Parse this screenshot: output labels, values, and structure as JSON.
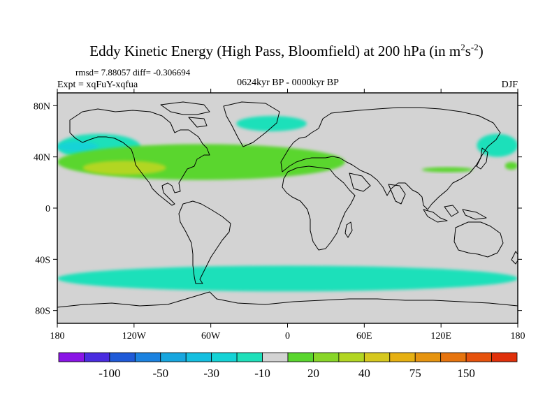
{
  "chart_data": {
    "type": "heatmap",
    "projection": "cylindrical-equidistant",
    "title": "Eddy Kinetic Energy (High Pass, Bloomfield) at 200 hPa (in m",
    "title_units_tail": {
      "s": "s",
      "exp_m": "2",
      "exp_s": "-2",
      "close": ")"
    },
    "stats": "rmsd= 7.88057 diff= -0.306694",
    "experiment": "Expt = xqFuY-xqfua",
    "period": "0624kyr BP - 0000kyr BP",
    "season": "DJF",
    "lon_range": [
      -180,
      180
    ],
    "lat_range": [
      -90,
      90
    ],
    "x_ticks": [
      {
        "value": -180,
        "label": "180"
      },
      {
        "value": -120,
        "label": "120W"
      },
      {
        "value": -60,
        "label": "60W"
      },
      {
        "value": 0,
        "label": "0"
      },
      {
        "value": 60,
        "label": "60E"
      },
      {
        "value": 120,
        "label": "120E"
      },
      {
        "value": 180,
        "label": "180"
      }
    ],
    "y_ticks": [
      {
        "value": 80,
        "label": "80N"
      },
      {
        "value": 40,
        "label": "40N"
      },
      {
        "value": 0,
        "label": "0"
      },
      {
        "value": -40,
        "label": "40S"
      },
      {
        "value": -80,
        "label": "80S"
      }
    ],
    "colorbar": {
      "colors": [
        "#8a14e6",
        "#4a2ce0",
        "#1f5ad8",
        "#1b82e0",
        "#17a6df",
        "#14bfe0",
        "#14d3d6",
        "#1ee0ba",
        "#d3d3d3",
        "#5ad62e",
        "#88d628",
        "#b2d622",
        "#d6c81e",
        "#e6b012",
        "#e69410",
        "#e6740e",
        "#e6520c",
        "#e0300a"
      ],
      "labels": [
        {
          "boundary": 2,
          "text": "-100"
        },
        {
          "boundary": 4,
          "text": "-50"
        },
        {
          "boundary": 6,
          "text": "-30"
        },
        {
          "boundary": 8,
          "text": "-10"
        },
        {
          "boundary": 10,
          "text": "20"
        },
        {
          "boundary": 12,
          "text": "40"
        },
        {
          "boundary": 14,
          "text": "75"
        },
        {
          "boundary": 16,
          "text": "150"
        }
      ]
    },
    "anomaly_regions": [
      {
        "name": "north-pacific-negative",
        "level": -10,
        "color": "#1ee0ba",
        "lon": [
          -180,
          -115
        ],
        "lat": [
          38,
          58
        ]
      },
      {
        "name": "north-pacific-inner-negative",
        "level": -30,
        "color": "#14d3d6",
        "lon": [
          -180,
          -148
        ],
        "lat": [
          44,
          52
        ]
      },
      {
        "name": "northwest-pacific-negative",
        "level": -10,
        "color": "#1ee0ba",
        "lon": [
          148,
          180
        ],
        "lat": [
          40,
          58
        ]
      },
      {
        "name": "north-atlantic-negative",
        "level": -10,
        "color": "#1ee0ba",
        "lon": [
          -40,
          15
        ],
        "lat": [
          60,
          72
        ]
      },
      {
        "name": "subtropical-jet-positive",
        "level": 20,
        "color": "#5ad62e",
        "lon": [
          -180,
          45
        ],
        "lat": [
          22,
          50
        ]
      },
      {
        "name": "subtropical-jet-core-positive",
        "level": 40,
        "color": "#b2d622",
        "lon": [
          -160,
          -95
        ],
        "lat": [
          26,
          37
        ]
      },
      {
        "name": "east-asia-positive",
        "level": 20,
        "color": "#5ad62e",
        "lon": [
          105,
          145
        ],
        "lat": [
          28,
          32
        ]
      },
      {
        "name": "dateline-positive",
        "level": 20,
        "color": "#5ad62e",
        "lon": [
          170,
          180
        ],
        "lat": [
          30,
          36
        ]
      },
      {
        "name": "southern-ocean-negative",
        "level": -10,
        "color": "#1ee0ba",
        "lon": [
          -180,
          180
        ],
        "lat": [
          -65,
          -45
        ]
      }
    ]
  }
}
